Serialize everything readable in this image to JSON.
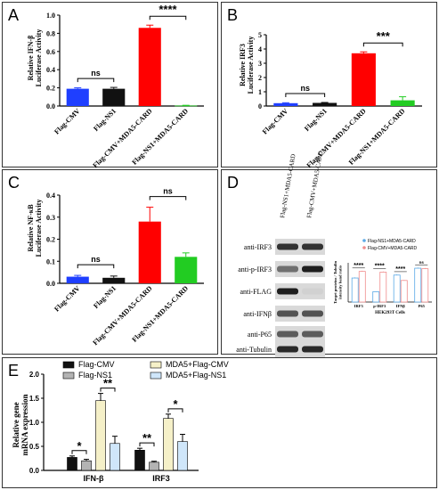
{
  "chart_data": [
    {
      "panel": "A",
      "type": "bar",
      "ylabel": "Relative IFN-β\nLuciferase Activity",
      "ylim": [
        0,
        1.0
      ],
      "yticks": [
        0,
        0.2,
        0.4,
        0.6,
        0.8,
        1.0
      ],
      "ytick_labels": [
        "0.0",
        "0.2",
        "0.4",
        "0.6",
        "0.8",
        "1.0"
      ],
      "categories": [
        "Flag-CMV",
        "Flag-NS1",
        "Flag-CMV+MDA5-CARD",
        "Flag-NS1+MDA5-CARD"
      ],
      "values": [
        0.19,
        0.19,
        0.86,
        0.005
      ],
      "errors": [
        0.01,
        0.015,
        0.03,
        0.003
      ],
      "colors": [
        "#1f3fff",
        "#111111",
        "#ff0000",
        "#22cc22"
      ],
      "annotations": [
        {
          "from": 0,
          "to": 1,
          "text": "ns"
        },
        {
          "from": 2,
          "to": 3,
          "text": "****"
        }
      ]
    },
    {
      "panel": "B",
      "type": "bar",
      "ylabel": "Relative IRF3\nLuciferase Activity",
      "ylim": [
        0,
        5
      ],
      "yticks": [
        0,
        1,
        2,
        3,
        4,
        5
      ],
      "ytick_labels": [
        "0",
        "1",
        "2",
        "3",
        "4",
        "5"
      ],
      "categories": [
        "Flag-CMV",
        "Flag-NS1",
        "Flag-CMV+MDA5-CARD",
        "Flag-NS1+MDA5-CARD"
      ],
      "values": [
        0.2,
        0.22,
        3.7,
        0.4
      ],
      "errors": [
        0.03,
        0.03,
        0.1,
        0.25
      ],
      "colors": [
        "#1f3fff",
        "#111111",
        "#ff0000",
        "#22cc22"
      ],
      "annotations": [
        {
          "from": 0,
          "to": 1,
          "text": "ns"
        },
        {
          "from": 2,
          "to": 3,
          "text": "***"
        }
      ]
    },
    {
      "panel": "C",
      "type": "bar",
      "ylabel": "Relative NF-κB\nLuciferase Activity",
      "ylim": [
        0,
        0.4
      ],
      "yticks": [
        0,
        0.1,
        0.2,
        0.3,
        0.4
      ],
      "ytick_labels": [
        "0.0",
        "0.1",
        "0.2",
        "0.3",
        "0.4"
      ],
      "categories": [
        "Flag-CMV",
        "Flag-NS1",
        "Flag-CMV+MDA5-CARD",
        "Flag-NS1+MDA5-CARD"
      ],
      "values": [
        0.03,
        0.025,
        0.28,
        0.12
      ],
      "errors": [
        0.006,
        0.008,
        0.065,
        0.018
      ],
      "colors": [
        "#1f3fff",
        "#111111",
        "#ff0000",
        "#22cc22"
      ],
      "annotations": [
        {
          "from": 0,
          "to": 1,
          "text": "ns"
        },
        {
          "from": 2,
          "to": 3,
          "text": "ns"
        }
      ]
    },
    {
      "panel": "D",
      "type": "bar",
      "xlabel": "HEK293T Cells",
      "ylabel": "Target proteins / Tubulin\nintensity band ratio",
      "ylim": [
        0,
        1.6
      ],
      "categories": [
        "IRF3",
        "p-IRF3",
        "IFNβ",
        "P65"
      ],
      "series": [
        {
          "name": "Flag-NS1+MDA5-CARD",
          "values": [
            0.98,
            0.42,
            1.1,
            1.38
          ],
          "errors": [
            0.03,
            0.02,
            0.03,
            0.03
          ],
          "color": "#5aa9e6"
        },
        {
          "name": "Flag-CMV+MDA5-CARD",
          "values": [
            1.25,
            1.22,
            0.88,
            1.36
          ],
          "errors": [
            0.03,
            0.03,
            0.02,
            0.03
          ],
          "color": "#f08c8c"
        }
      ],
      "annotations": [
        "****",
        "****",
        "****",
        "ns"
      ]
    },
    {
      "panel": "E",
      "type": "bar",
      "ylabel": "Relative gene\nmRNA expression",
      "ylim": [
        0,
        2.0
      ],
      "yticks": [
        0,
        0.5,
        1.0,
        1.5,
        2.0
      ],
      "ytick_labels": [
        "0.0",
        "0.5",
        "1.0",
        "1.5",
        "2.0"
      ],
      "categories": [
        "IFN-β",
        "IRF3"
      ],
      "series": [
        {
          "name": "Flag-CMV",
          "values": [
            0.27,
            0.42
          ],
          "errors": [
            0.03,
            0.04
          ],
          "color": "#111111"
        },
        {
          "name": "Flag-NS1",
          "values": [
            0.2,
            0.17
          ],
          "errors": [
            0.03,
            0.02
          ],
          "color": "#b3b3b3"
        },
        {
          "name": "MDA5+Flag-CMV",
          "values": [
            1.45,
            1.08
          ],
          "errors": [
            0.15,
            0.09
          ],
          "color": "#f5f0c8"
        },
        {
          "name": "MDA5+Flag-NS1",
          "values": [
            0.56,
            0.6
          ],
          "errors": [
            0.15,
            0.15
          ],
          "color": "#cfe6fa"
        }
      ],
      "annotations": [
        {
          "group": 0,
          "from": 0,
          "to": 1,
          "text": "*"
        },
        {
          "group": 0,
          "from": 2,
          "to": 3,
          "text": "**"
        },
        {
          "group": 1,
          "from": 0,
          "to": 1,
          "text": "**"
        },
        {
          "group": 1,
          "from": 2,
          "to": 3,
          "text": "*"
        }
      ]
    }
  ],
  "panel_letters": [
    "A",
    "B",
    "C",
    "D",
    "E"
  ],
  "blot": {
    "lane_labels": [
      "Flag-NS1+MDA5-CARD",
      "Flag-CMV+MDA5-CARD"
    ],
    "rows": [
      "anti-IRF3",
      "anti-p-IRF3",
      "anti-FLAG",
      "anti-IFNβ",
      "anti-P65",
      "anti-Tubulin"
    ],
    "band_intensity": [
      [
        0.85,
        0.85
      ],
      [
        0.55,
        0.95
      ],
      [
        0.95,
        0.08
      ],
      [
        0.7,
        0.7
      ],
      [
        0.65,
        0.65
      ],
      [
        0.9,
        0.9
      ]
    ]
  }
}
